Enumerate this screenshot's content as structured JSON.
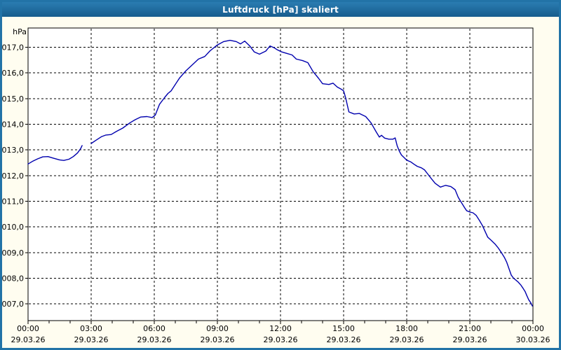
{
  "window": {
    "title": "Luftdruck [hPa] skaliert"
  },
  "colors": {
    "titlebar_top": "#2a7cb1",
    "titlebar_bottom": "#175d8d",
    "frame_border": "#2273a7",
    "page_background": "#fffdf0",
    "plot_background": "#ffffff",
    "grid": "#000000",
    "axis": "#000000",
    "label_text": "#000000",
    "series_line": "#0000ae"
  },
  "chart_data": {
    "type": "line",
    "title": "Luftdruck [hPa] skaliert",
    "unit_label": "hPa",
    "grid": "dashed",
    "legend": "none",
    "x_axis": {
      "range_hours": [
        0,
        24
      ],
      "major_ticks_hours": [
        0,
        3,
        6,
        9,
        12,
        15,
        18,
        21,
        24
      ],
      "minor_tick_every_hours": 1,
      "tick_time_labels": [
        "00:00",
        "03:00",
        "06:00",
        "09:00",
        "12:00",
        "15:00",
        "18:00",
        "21:00",
        "00:00"
      ],
      "tick_date_labels": [
        "29.03.26",
        "29.03.26",
        "29.03.26",
        "29.03.26",
        "29.03.26",
        "29.03.26",
        "29.03.26",
        "29.03.26",
        "30.03.26"
      ]
    },
    "y_axis": {
      "range": [
        1006.35,
        1017.75
      ],
      "ticks": [
        1017,
        1016,
        1015,
        1014,
        1013,
        1012,
        1011,
        1010,
        1009,
        1008,
        1007
      ],
      "tick_labels": [
        "1017,0",
        "1016,0",
        "1015,0",
        "1014,0",
        "1013,0",
        "1012,0",
        "1011,0",
        "1010,0",
        "1009,0",
        "1008,0",
        "1007,0"
      ]
    },
    "series": [
      {
        "name": "Luftdruck",
        "color": "#0000ae",
        "segments": [
          [
            [
              0.0,
              1012.45
            ],
            [
              0.2,
              1012.55
            ],
            [
              0.45,
              1012.65
            ],
            [
              0.7,
              1012.73
            ],
            [
              0.95,
              1012.74
            ],
            [
              1.2,
              1012.68
            ],
            [
              1.5,
              1012.61
            ],
            [
              1.7,
              1012.59
            ],
            [
              1.95,
              1012.64
            ],
            [
              2.15,
              1012.74
            ],
            [
              2.35,
              1012.88
            ],
            [
              2.5,
              1013.05
            ],
            [
              2.57,
              1013.17
            ]
          ],
          [
            [
              3.0,
              1013.25
            ],
            [
              3.2,
              1013.36
            ],
            [
              3.5,
              1013.52
            ],
            [
              3.7,
              1013.58
            ],
            [
              3.95,
              1013.6
            ],
            [
              4.2,
              1013.72
            ],
            [
              4.5,
              1013.85
            ],
            [
              4.85,
              1014.06
            ],
            [
              5.1,
              1014.18
            ],
            [
              5.35,
              1014.28
            ],
            [
              5.65,
              1014.3
            ],
            [
              5.9,
              1014.26
            ],
            [
              6.05,
              1014.36
            ],
            [
              6.25,
              1014.78
            ],
            [
              6.5,
              1015.05
            ],
            [
              6.65,
              1015.2
            ],
            [
              6.8,
              1015.3
            ],
            [
              7.0,
              1015.55
            ],
            [
              7.2,
              1015.8
            ],
            [
              7.5,
              1016.08
            ],
            [
              7.75,
              1016.27
            ],
            [
              8.1,
              1016.54
            ],
            [
              8.4,
              1016.64
            ],
            [
              8.65,
              1016.86
            ],
            [
              9.0,
              1017.09
            ],
            [
              9.3,
              1017.22
            ],
            [
              9.6,
              1017.27
            ],
            [
              9.9,
              1017.22
            ],
            [
              10.1,
              1017.13
            ],
            [
              10.3,
              1017.24
            ],
            [
              10.55,
              1017.04
            ],
            [
              10.75,
              1016.82
            ],
            [
              11.0,
              1016.73
            ],
            [
              11.3,
              1016.85
            ],
            [
              11.5,
              1017.05
            ],
            [
              11.7,
              1016.98
            ],
            [
              11.85,
              1016.9
            ],
            [
              12.05,
              1016.82
            ],
            [
              12.3,
              1016.76
            ],
            [
              12.55,
              1016.7
            ],
            [
              12.75,
              1016.54
            ],
            [
              13.05,
              1016.48
            ],
            [
              13.3,
              1016.4
            ],
            [
              13.55,
              1016.05
            ],
            [
              13.8,
              1015.8
            ],
            [
              14.0,
              1015.58
            ],
            [
              14.3,
              1015.55
            ],
            [
              14.5,
              1015.6
            ],
            [
              14.7,
              1015.45
            ],
            [
              14.9,
              1015.36
            ],
            [
              15.0,
              1015.3
            ],
            [
              15.1,
              1015.02
            ],
            [
              15.25,
              1014.48
            ],
            [
              15.5,
              1014.4
            ],
            [
              15.75,
              1014.42
            ],
            [
              16.05,
              1014.3
            ],
            [
              16.3,
              1014.06
            ],
            [
              16.55,
              1013.7
            ],
            [
              16.7,
              1013.5
            ],
            [
              16.8,
              1013.57
            ],
            [
              16.95,
              1013.46
            ],
            [
              17.15,
              1013.42
            ],
            [
              17.35,
              1013.42
            ],
            [
              17.45,
              1013.47
            ],
            [
              17.55,
              1013.15
            ],
            [
              17.65,
              1012.95
            ],
            [
              17.75,
              1012.8
            ],
            [
              17.85,
              1012.72
            ],
            [
              18.0,
              1012.6
            ],
            [
              18.2,
              1012.53
            ],
            [
              18.35,
              1012.44
            ],
            [
              18.5,
              1012.36
            ],
            [
              18.7,
              1012.3
            ],
            [
              18.85,
              1012.22
            ],
            [
              19.0,
              1012.06
            ],
            [
              19.2,
              1011.85
            ],
            [
              19.35,
              1011.7
            ],
            [
              19.6,
              1011.55
            ],
            [
              19.85,
              1011.62
            ],
            [
              20.1,
              1011.57
            ],
            [
              20.3,
              1011.45
            ],
            [
              20.45,
              1011.15
            ],
            [
              20.6,
              1010.95
            ],
            [
              20.75,
              1010.75
            ],
            [
              20.85,
              1010.63
            ],
            [
              21.0,
              1010.58
            ],
            [
              21.15,
              1010.55
            ],
            [
              21.3,
              1010.45
            ],
            [
              21.45,
              1010.26
            ],
            [
              21.6,
              1010.05
            ],
            [
              21.85,
              1009.6
            ],
            [
              22.0,
              1009.49
            ],
            [
              22.2,
              1009.33
            ],
            [
              22.35,
              1009.18
            ],
            [
              22.5,
              1009.0
            ],
            [
              22.65,
              1008.8
            ],
            [
              22.75,
              1008.63
            ],
            [
              22.85,
              1008.4
            ],
            [
              22.97,
              1008.12
            ],
            [
              23.08,
              1008.0
            ],
            [
              23.2,
              1007.92
            ],
            [
              23.3,
              1007.85
            ],
            [
              23.42,
              1007.74
            ],
            [
              23.52,
              1007.62
            ],
            [
              23.63,
              1007.48
            ],
            [
              23.7,
              1007.34
            ],
            [
              23.8,
              1007.16
            ],
            [
              23.9,
              1007.04
            ],
            [
              23.97,
              1006.92
            ]
          ]
        ]
      }
    ]
  }
}
